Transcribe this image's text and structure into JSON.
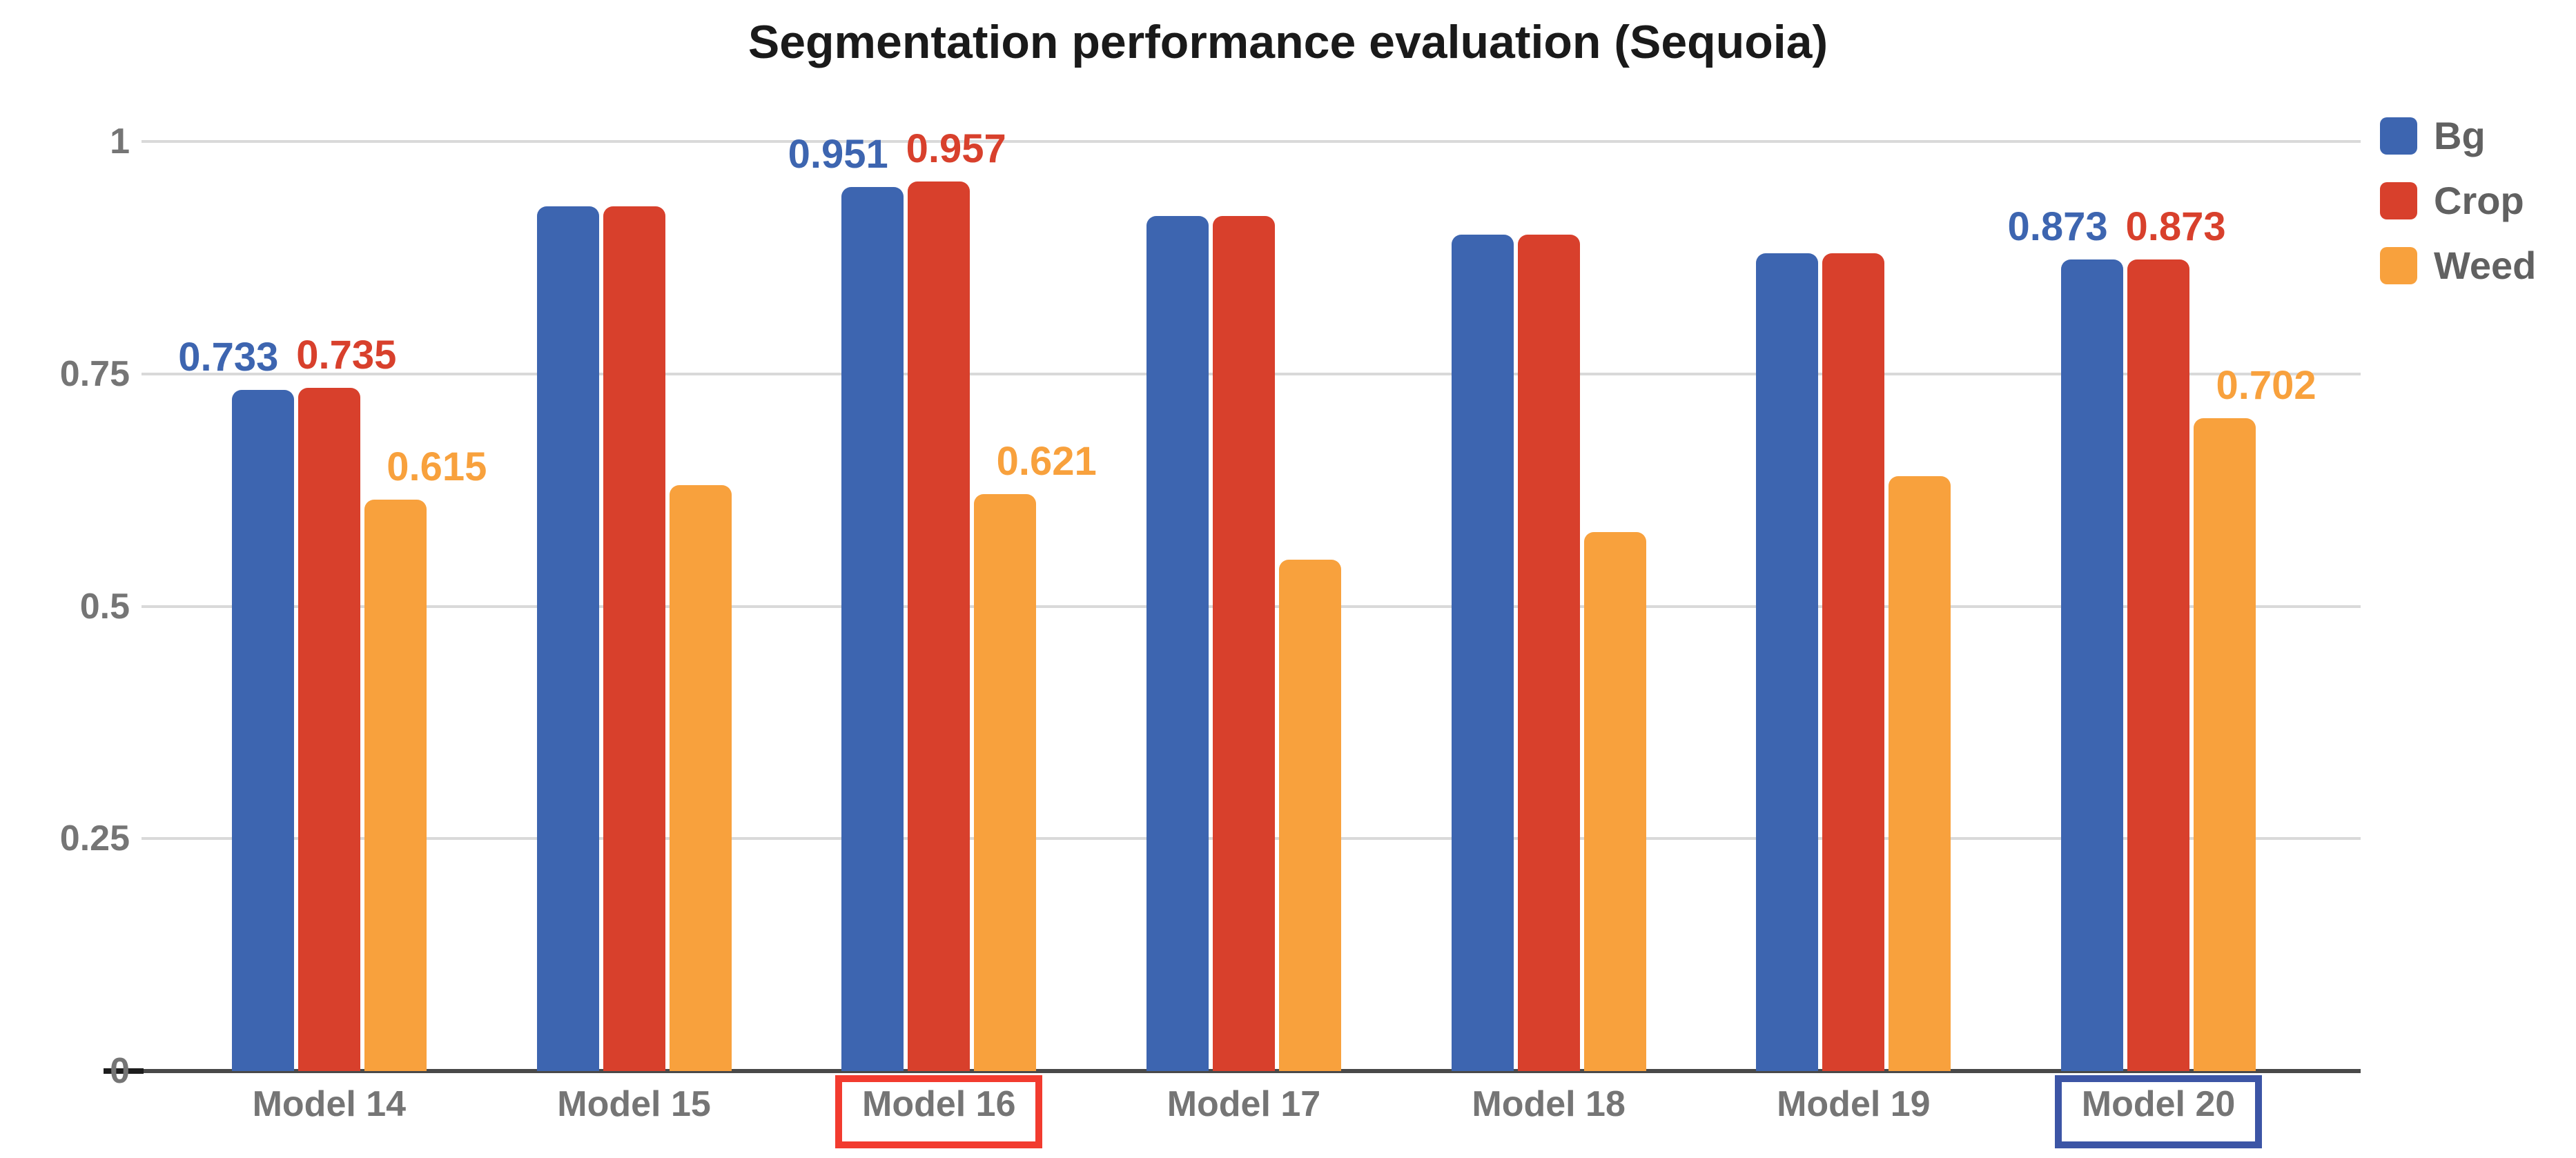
{
  "title": "Segmentation performance evaluation (Sequoia)",
  "legend": {
    "items": [
      {
        "label": "Bg",
        "color": "#3d65b0"
      },
      {
        "label": "Crop",
        "color": "#d8402c"
      },
      {
        "label": "Weed",
        "color": "#f8a13d"
      }
    ]
  },
  "colors": {
    "grid": "#d9d9d9",
    "axis": "#494949",
    "axis_text": "#757575",
    "legend_text": "#616161",
    "title_text": "#1a1a1a",
    "highlight_red_box": "#f23b2f",
    "highlight_blue_box": "#3c55a5"
  },
  "chart_data": {
    "type": "bar",
    "title": "Segmentation performance evaluation (Sequoia)",
    "xlabel": "",
    "ylabel": "",
    "ylim": [
      0,
      1
    ],
    "grid": true,
    "legend_position": "right",
    "categories": [
      "Model 14",
      "Model 15",
      "Model 16",
      "Model 17",
      "Model 18",
      "Model 19",
      "Model 20"
    ],
    "y_ticks": [
      {
        "label": "1",
        "value": 1
      },
      {
        "label": "0.75",
        "value": 0.75
      },
      {
        "label": "0.5",
        "value": 0.5
      },
      {
        "label": "0.25",
        "value": 0.25
      },
      {
        "label": "0",
        "value": 0
      }
    ],
    "series": [
      {
        "name": "Bg",
        "color": "#3d65b0",
        "values": [
          0.733,
          0.93,
          0.951,
          0.92,
          0.9,
          0.88,
          0.873
        ]
      },
      {
        "name": "Crop",
        "color": "#d8402c",
        "values": [
          0.735,
          0.93,
          0.957,
          0.92,
          0.9,
          0.88,
          0.873
        ]
      },
      {
        "name": "Weed",
        "color": "#f8a13d",
        "values": [
          0.615,
          0.63,
          0.621,
          0.55,
          0.58,
          0.64,
          0.702
        ]
      }
    ],
    "value_labels": [
      {
        "category": 0,
        "series": 0,
        "text": "0.733"
      },
      {
        "category": 0,
        "series": 1,
        "text": "0.735"
      },
      {
        "category": 0,
        "series": 2,
        "text": "0.615"
      },
      {
        "category": 2,
        "series": 0,
        "text": "0.951"
      },
      {
        "category": 2,
        "series": 1,
        "text": "0.957"
      },
      {
        "category": 2,
        "series": 2,
        "text": "0.621"
      },
      {
        "category": 6,
        "series": 0,
        "text": "0.873"
      },
      {
        "category": 6,
        "series": 1,
        "text": "0.873"
      },
      {
        "category": 6,
        "series": 2,
        "text": "0.702"
      }
    ],
    "category_highlights": [
      {
        "category": 2,
        "box_color": "#f23b2f"
      },
      {
        "category": 6,
        "box_color": "#3c55a5"
      }
    ]
  }
}
